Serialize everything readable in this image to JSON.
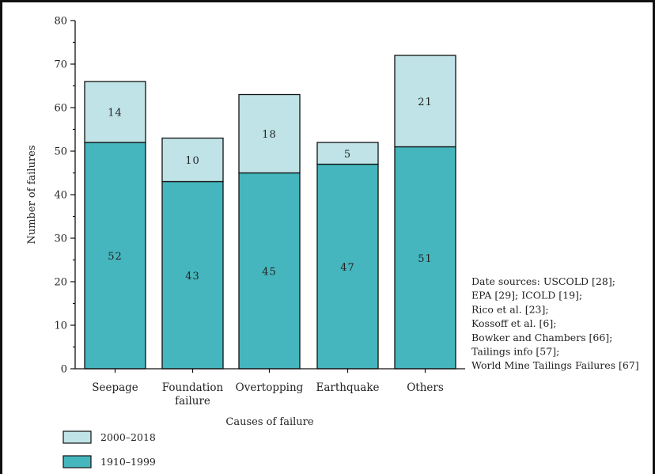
{
  "chart_data": {
    "type": "bar",
    "stacked": true,
    "categories": [
      [
        "Seepage"
      ],
      [
        "Foundation",
        "failure"
      ],
      [
        "Overtopping"
      ],
      [
        "Earthquake"
      ],
      [
        "Others"
      ]
    ],
    "series": [
      {
        "name": "1910–1999",
        "values": [
          52,
          43,
          45,
          47,
          51
        ],
        "color": "#45B6BD"
      },
      {
        "name": "2000–2018",
        "values": [
          14,
          10,
          18,
          5,
          21
        ],
        "color": "#BFE3E6"
      }
    ],
    "xlabel": "Causes of failure",
    "ylabel": "Number of failures",
    "ylim": [
      0,
      80
    ],
    "yticks": [
      0,
      10,
      20,
      30,
      40,
      50,
      60,
      70,
      80
    ],
    "grid": false,
    "legend_placement": "bottom-left",
    "legend_order": [
      "2000–2018",
      "1910–1999"
    ],
    "notes": [
      "Date sources: USCOLD [28];",
      "EPA [29]; ICOLD [19];",
      "Rico et al. [23];",
      "Kossoff et al. [6];",
      "Bowker and Chambers [66];",
      "Tailings info [57];",
      "World Mine Tailings Failures [67]"
    ]
  }
}
